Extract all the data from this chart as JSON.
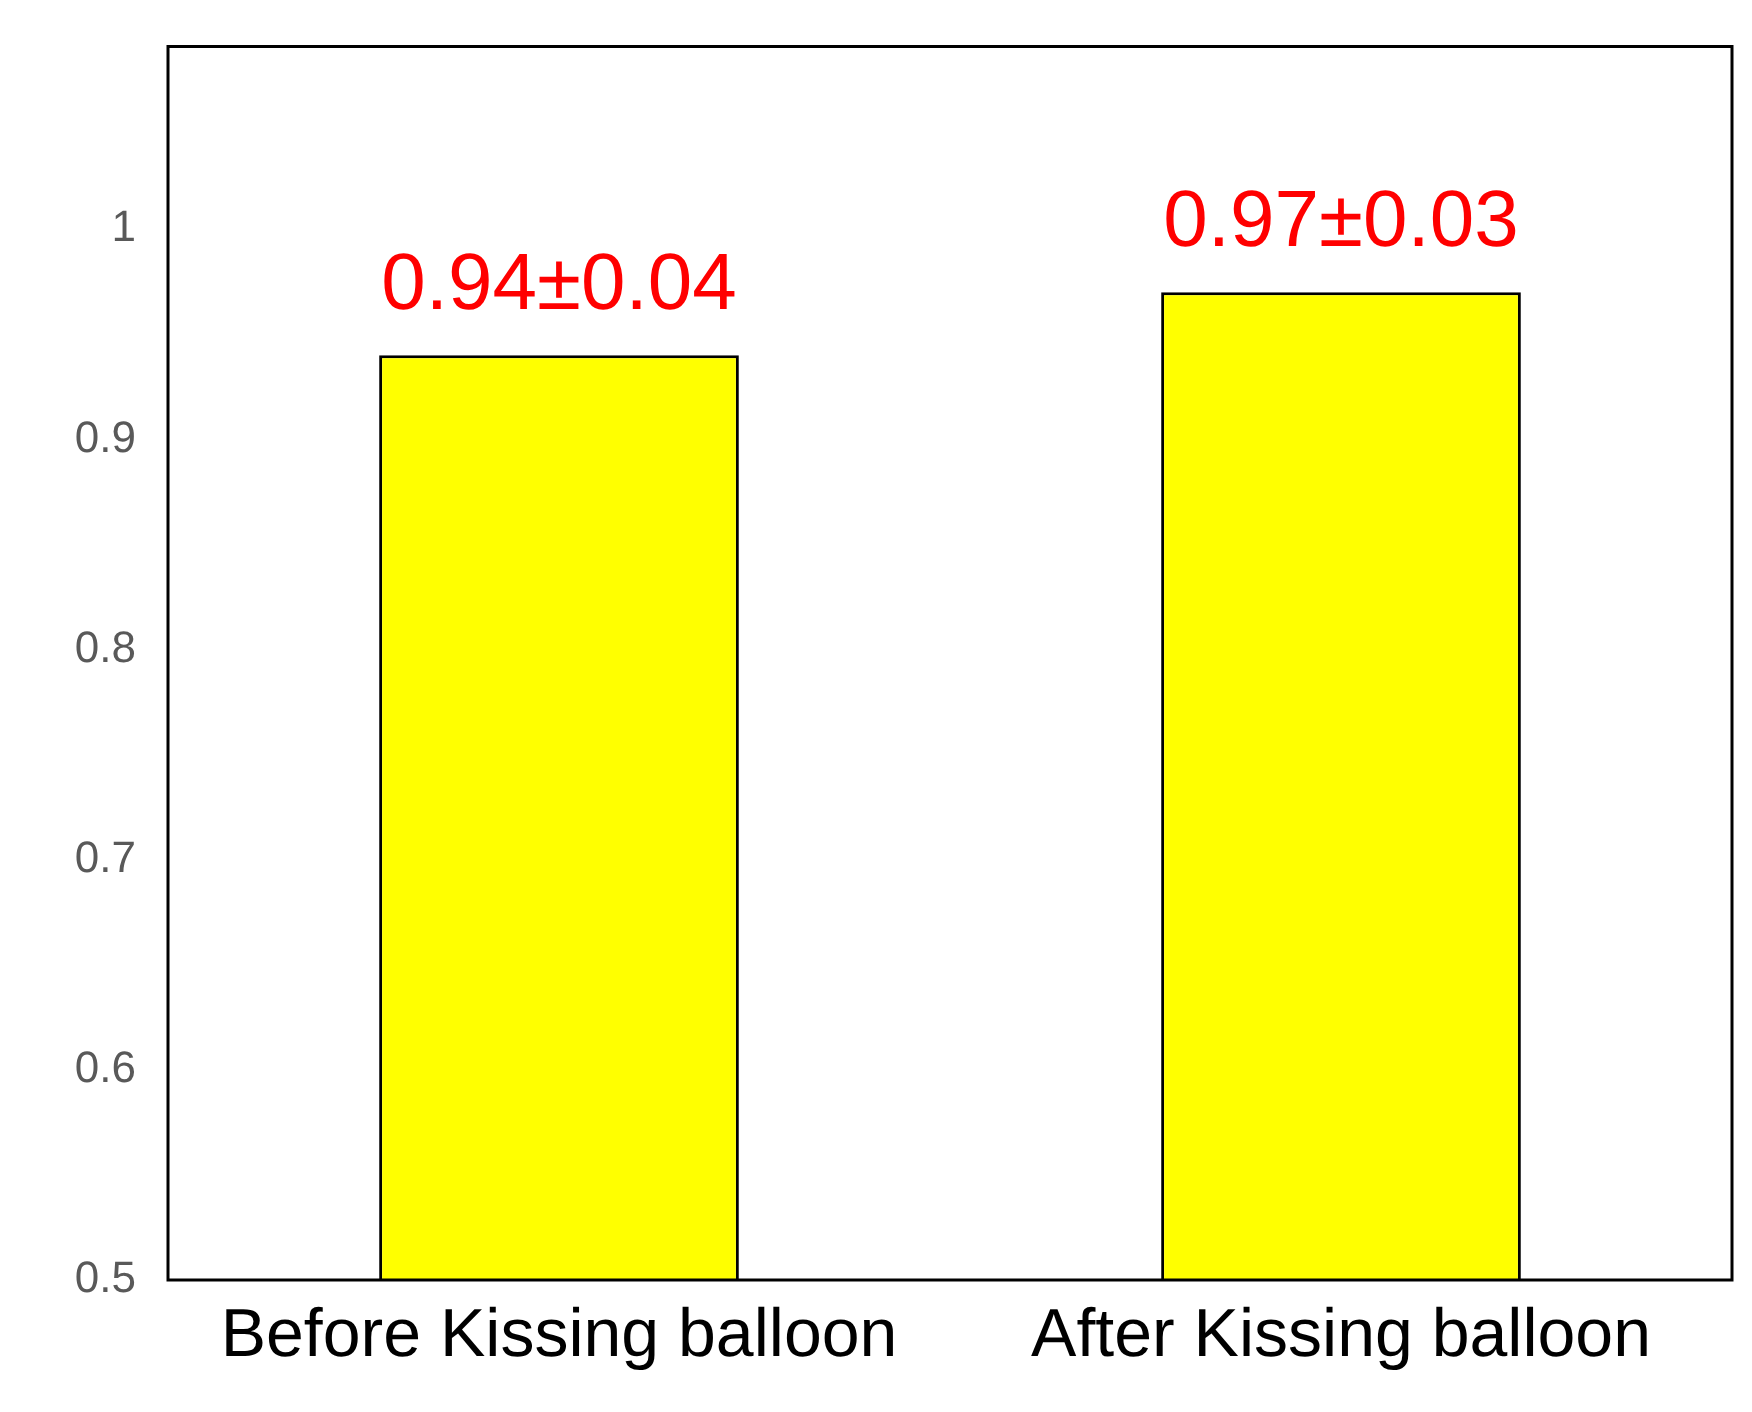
{
  "chart_data": {
    "type": "bar",
    "categories": [
      "Before Kissing balloon",
      "After Kissing balloon"
    ],
    "values": [
      0.94,
      0.97
    ],
    "value_labels": [
      "0.94±0.04",
      "0.97±0.03"
    ],
    "color": "#ffff00",
    "ylim": [
      0.5,
      1.087
    ],
    "yticks": [
      0.5,
      0.6,
      0.7,
      0.8,
      0.9,
      1
    ],
    "grid": false,
    "legend": false
  }
}
